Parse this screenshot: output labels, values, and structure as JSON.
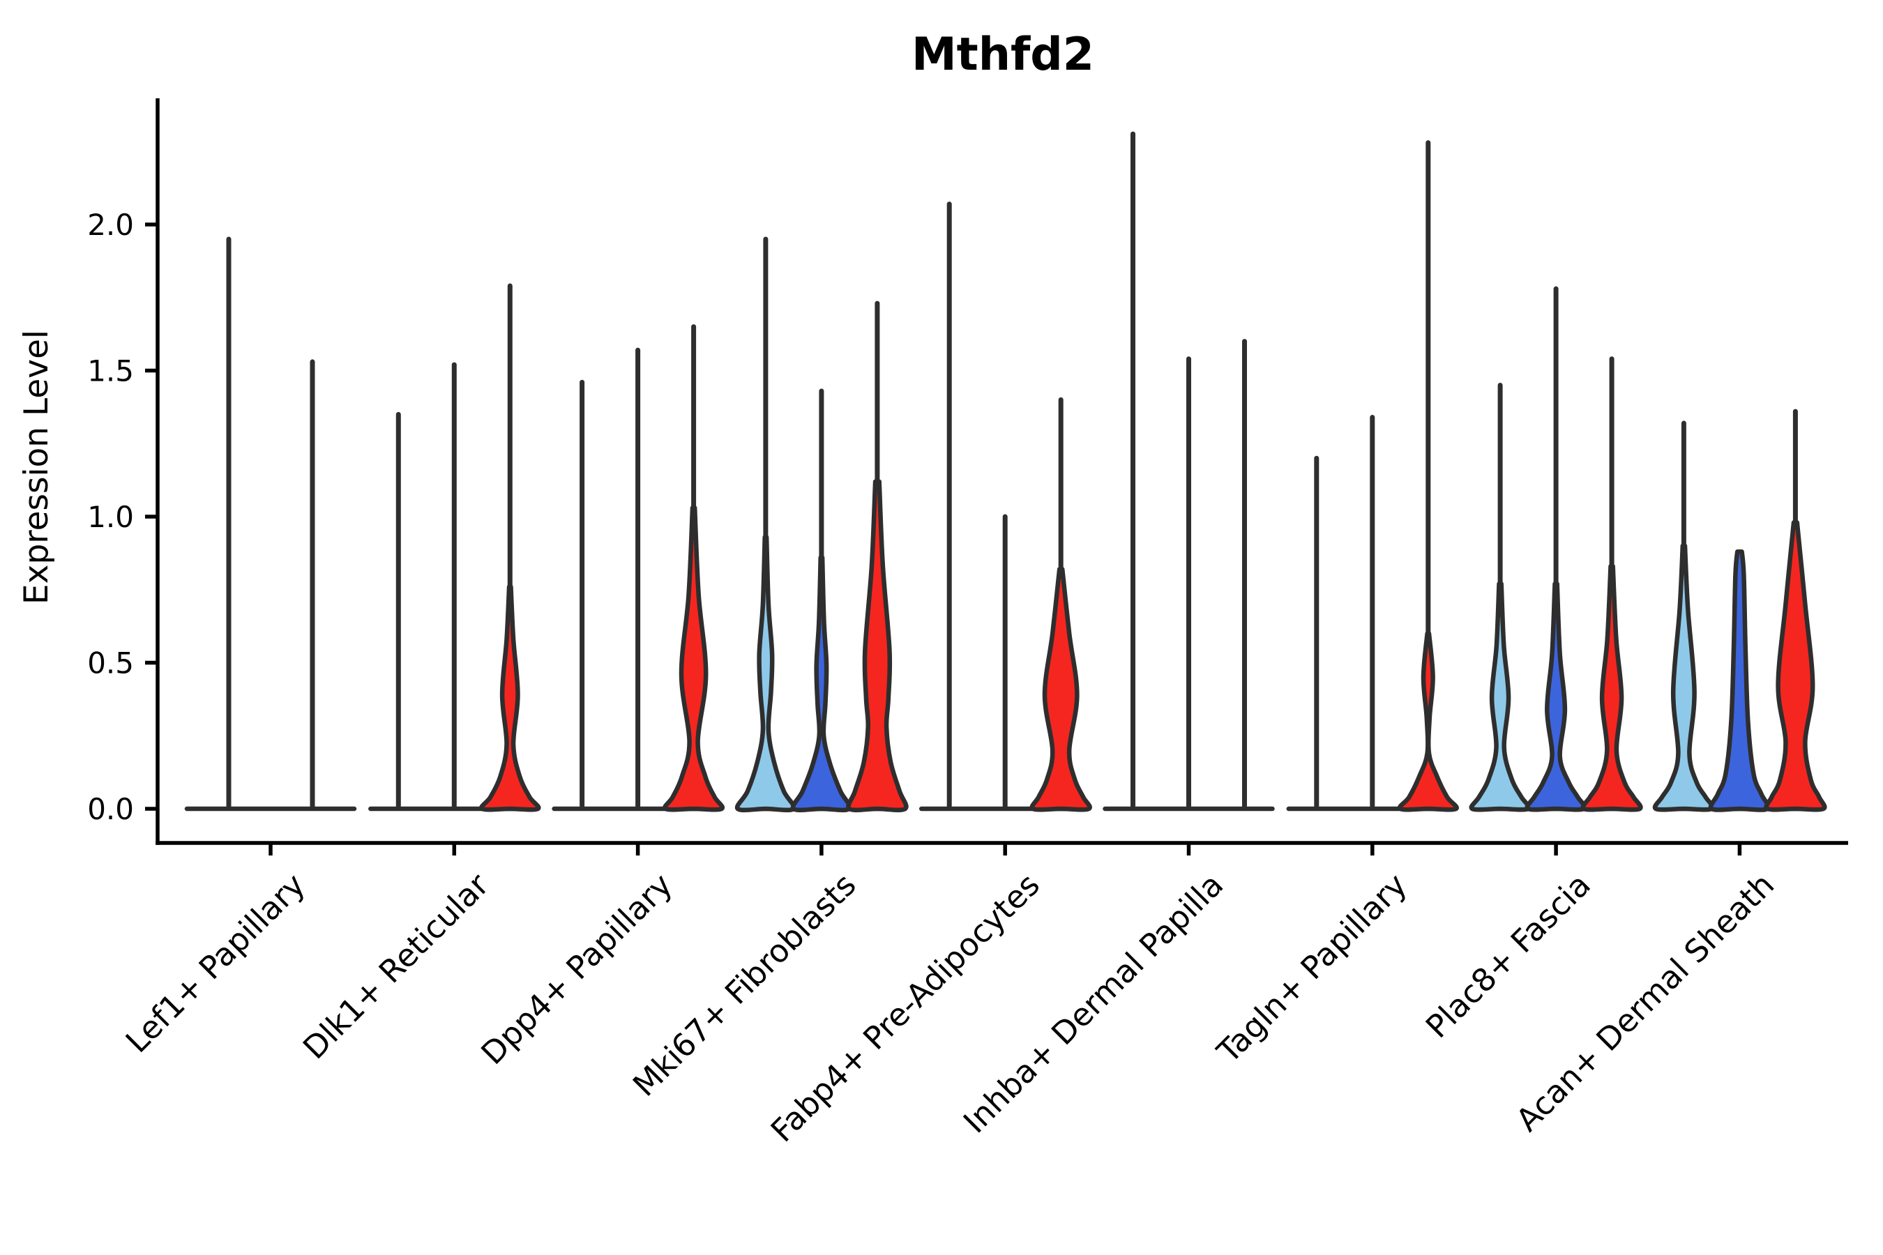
{
  "chart_data": {
    "type": "violin",
    "title": "Mthfd2",
    "ylabel": "Expression Level",
    "xlabel": "",
    "grid": false,
    "legend": "none",
    "y_axis": {
      "min": 0,
      "max": 2.43,
      "ticks": [
        {
          "label": "0.0",
          "value": 0.0
        },
        {
          "label": "0.5",
          "value": 0.5
        },
        {
          "label": "1.0",
          "value": 1.0
        },
        {
          "label": "1.5",
          "value": 1.5
        },
        {
          "label": "2.0",
          "value": 2.0
        }
      ]
    },
    "colors": {
      "light_blue": "#8ec9e9",
      "dark_blue": "#3c64dd",
      "red": "#f5261f",
      "outline": "#2e2e2e",
      "axis": "#000000"
    },
    "categories": [
      "Lef1+ Papillary",
      "Dlk1+ Reticular",
      "Dpp4+ Papillary",
      "Mki67+ Fibroblasts",
      "Fabp4+ Pre-Adipocytes",
      "Inhba+ Dermal Papilla",
      "Tagln+ Papillary",
      "Plac8+ Fascia",
      "Acan+ Dermal Sheath"
    ],
    "groups": [
      {
        "label": "Lef1+ Papillary",
        "violins": [
          {
            "slot": -0.75,
            "halfwidth": 60,
            "style": "flat",
            "color": "none",
            "max": 1.95
          },
          {
            "slot": 0.75,
            "halfwidth": 60,
            "style": "flat",
            "color": "none",
            "max": 1.53
          }
        ]
      },
      {
        "label": "Dlk1+ Reticular",
        "violins": [
          {
            "slot": -1,
            "style": "flat",
            "color": "none",
            "max": 1.35
          },
          {
            "slot": 0,
            "style": "flat",
            "color": "none",
            "max": 1.52
          },
          {
            "slot": 1,
            "style": "body",
            "color": "red",
            "max": 1.79,
            "profile": [
              [
                0.76,
                0.03
              ],
              [
                0.58,
                0.12
              ],
              [
                0.39,
                0.28
              ],
              [
                0.22,
                0.12
              ],
              [
                0.11,
                0.35
              ],
              [
                0.04,
                0.7
              ],
              [
                0,
                1
              ]
            ]
          }
        ]
      },
      {
        "label": "Dpp4+ Papillary",
        "violins": [
          {
            "slot": -1,
            "style": "flat",
            "color": "none",
            "max": 1.46
          },
          {
            "slot": 0,
            "style": "flat",
            "color": "none",
            "max": 1.57
          },
          {
            "slot": 1,
            "style": "body",
            "color": "red",
            "max": 1.65,
            "profile": [
              [
                1.03,
                0.04
              ],
              [
                0.73,
                0.18
              ],
              [
                0.46,
                0.44
              ],
              [
                0.23,
                0.15
              ],
              [
                0.11,
                0.42
              ],
              [
                0.04,
                0.75
              ],
              [
                0,
                1
              ]
            ]
          }
        ]
      },
      {
        "label": "Mki67+ Fibroblasts",
        "violins": [
          {
            "slot": -1,
            "style": "body",
            "color": "light_blue",
            "max": 1.95,
            "profile": [
              [
                0.93,
                0.03
              ],
              [
                0.7,
                0.1
              ],
              [
                0.53,
                0.23
              ],
              [
                0.4,
                0.19
              ],
              [
                0.27,
                0.1
              ],
              [
                0.16,
                0.3
              ],
              [
                0.06,
                0.65
              ],
              [
                0,
                1
              ]
            ]
          },
          {
            "slot": 0,
            "style": "body",
            "color": "dark_blue",
            "max": 1.43,
            "profile": [
              [
                0.86,
                0.03
              ],
              [
                0.64,
                0.09
              ],
              [
                0.49,
                0.18
              ],
              [
                0.36,
                0.14
              ],
              [
                0.25,
                0.08
              ],
              [
                0.15,
                0.32
              ],
              [
                0.06,
                0.68
              ],
              [
                0,
                1
              ]
            ]
          },
          {
            "slot": 1,
            "style": "body",
            "color": "red",
            "max": 1.73,
            "profile": [
              [
                1.12,
                0.07
              ],
              [
                0.83,
                0.2
              ],
              [
                0.54,
                0.44
              ],
              [
                0.38,
                0.4
              ],
              [
                0.28,
                0.33
              ],
              [
                0.16,
                0.48
              ],
              [
                0.06,
                0.8
              ],
              [
                0,
                1
              ]
            ]
          }
        ]
      },
      {
        "label": "Fabp4+ Pre-Adipocytes",
        "violins": [
          {
            "slot": -1,
            "style": "flat",
            "color": "none",
            "max": 2.07
          },
          {
            "slot": 0,
            "style": "flat",
            "color": "none",
            "max": 1.0
          },
          {
            "slot": 1,
            "style": "body",
            "color": "red",
            "max": 1.4,
            "profile": [
              [
                0.82,
                0.05
              ],
              [
                0.6,
                0.3
              ],
              [
                0.39,
                0.58
              ],
              [
                0.2,
                0.3
              ],
              [
                0.1,
                0.5
              ],
              [
                0.04,
                0.8
              ],
              [
                0,
                1
              ]
            ]
          }
        ]
      },
      {
        "label": "Inhba+ Dermal Papilla",
        "violins": [
          {
            "slot": -1,
            "style": "flat",
            "color": "none",
            "max": 2.31
          },
          {
            "slot": 0,
            "style": "flat",
            "color": "none",
            "max": 1.54
          },
          {
            "slot": 1,
            "style": "flat",
            "color": "none",
            "max": 1.6
          }
        ]
      },
      {
        "label": "Tagln+ Papillary",
        "violins": [
          {
            "slot": -1,
            "style": "flat",
            "color": "none",
            "max": 1.2
          },
          {
            "slot": 0,
            "style": "flat",
            "color": "none",
            "max": 1.34
          },
          {
            "slot": 1,
            "style": "body",
            "color": "red",
            "max": 2.28,
            "profile": [
              [
                0.6,
                0.03
              ],
              [
                0.45,
                0.17
              ],
              [
                0.31,
                0.05
              ],
              [
                0.19,
                0.03
              ],
              [
                0.11,
                0.32
              ],
              [
                0.04,
                0.68
              ],
              [
                0,
                1
              ]
            ]
          }
        ]
      },
      {
        "label": "Plac8+ Fascia",
        "violins": [
          {
            "slot": -1,
            "style": "body",
            "color": "light_blue",
            "max": 1.45,
            "profile": [
              [
                0.77,
                0.04
              ],
              [
                0.56,
                0.13
              ],
              [
                0.38,
                0.3
              ],
              [
                0.21,
                0.14
              ],
              [
                0.1,
                0.42
              ],
              [
                0.04,
                0.76
              ],
              [
                0,
                1
              ]
            ]
          },
          {
            "slot": 0,
            "style": "body",
            "color": "dark_blue",
            "max": 1.78,
            "profile": [
              [
                0.77,
                0.04
              ],
              [
                0.53,
                0.14
              ],
              [
                0.34,
                0.32
              ],
              [
                0.18,
                0.14
              ],
              [
                0.09,
                0.46
              ],
              [
                0.04,
                0.78
              ],
              [
                0,
                1
              ]
            ]
          },
          {
            "slot": 1,
            "style": "body",
            "color": "red",
            "max": 1.54,
            "profile": [
              [
                0.83,
                0.04
              ],
              [
                0.58,
                0.16
              ],
              [
                0.38,
                0.35
              ],
              [
                0.2,
                0.17
              ],
              [
                0.09,
                0.46
              ],
              [
                0.04,
                0.78
              ],
              [
                0,
                1
              ]
            ]
          }
        ]
      },
      {
        "label": "Acan+ Dermal Sheath",
        "violins": [
          {
            "slot": -1,
            "style": "body",
            "color": "light_blue",
            "max": 1.32,
            "profile": [
              [
                0.9,
                0.04
              ],
              [
                0.68,
                0.15
              ],
              [
                0.4,
                0.38
              ],
              [
                0.19,
                0.2
              ],
              [
                0.09,
                0.46
              ],
              [
                0.04,
                0.78
              ],
              [
                0,
                1
              ]
            ]
          },
          {
            "slot": 0,
            "style": "body",
            "color": "dark_blue",
            "max": 0.88,
            "no_spike": true,
            "profile": [
              [
                0.88,
                0.08
              ],
              [
                0.8,
                0.15
              ],
              [
                0.55,
                0.21
              ],
              [
                0.3,
                0.3
              ],
              [
                0.12,
                0.5
              ],
              [
                0.05,
                0.78
              ],
              [
                0,
                1
              ]
            ]
          },
          {
            "slot": 1,
            "style": "body",
            "color": "red",
            "max": 1.36,
            "profile": [
              [
                0.98,
                0.06
              ],
              [
                0.7,
                0.35
              ],
              [
                0.42,
                0.62
              ],
              [
                0.23,
                0.35
              ],
              [
                0.1,
                0.55
              ],
              [
                0.04,
                0.85
              ],
              [
                0,
                1
              ]
            ]
          }
        ]
      }
    ]
  }
}
